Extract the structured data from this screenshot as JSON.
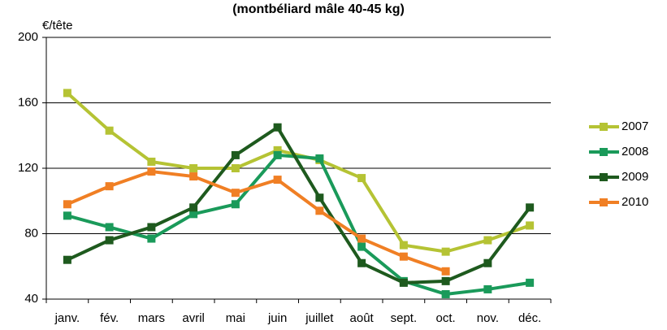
{
  "chart_data": {
    "type": "line",
    "title": "(montbéliard mâle 40-45 kg)",
    "y_label": "€/tête",
    "categories": [
      "janv.",
      "fév.",
      "mars",
      "avril",
      "mai",
      "juin",
      "juillet",
      "août",
      "sept.",
      "oct.",
      "nov.",
      "déc."
    ],
    "series": [
      {
        "name": "2007",
        "color": "#b5c334",
        "values": [
          166,
          143,
          124,
          120,
          120,
          131,
          125,
          114,
          73,
          69,
          76,
          85
        ]
      },
      {
        "name": "2008",
        "color": "#1a9a5a",
        "values": [
          91,
          84,
          77,
          92,
          98,
          128,
          126,
          72,
          51,
          43,
          46,
          50
        ]
      },
      {
        "name": "2009",
        "color": "#1e5a1e",
        "values": [
          64,
          76,
          84,
          96,
          128,
          145,
          102,
          62,
          50,
          51,
          62,
          96
        ]
      },
      {
        "name": "2010",
        "color": "#f07f24",
        "values": [
          98,
          109,
          118,
          115,
          105,
          113,
          94,
          77,
          66,
          57,
          null,
          null
        ]
      }
    ],
    "ylim": [
      40,
      200
    ],
    "yticks": [
      40,
      80,
      120,
      160,
      200
    ],
    "grid": true,
    "legend": "right"
  }
}
